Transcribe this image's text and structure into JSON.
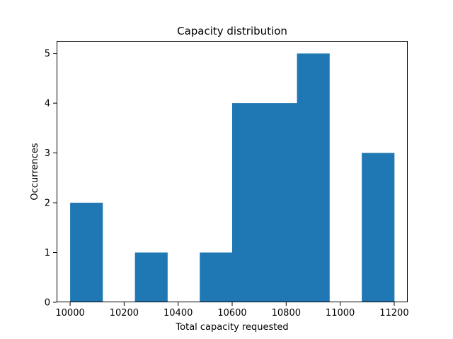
{
  "chart_data": {
    "type": "bar",
    "subtype": "histogram",
    "title": "Capacity distribution",
    "xlabel": "Total capacity requested",
    "ylabel": "Occurrences",
    "xlim": [
      9950,
      11250
    ],
    "ylim": [
      0,
      5.25
    ],
    "bins": [
      {
        "start": 10000,
        "end": 10120,
        "count": 2
      },
      {
        "start": 10120,
        "end": 10240,
        "count": 0
      },
      {
        "start": 10240,
        "end": 10360,
        "count": 1
      },
      {
        "start": 10360,
        "end": 10480,
        "count": 0
      },
      {
        "start": 10480,
        "end": 10600,
        "count": 1
      },
      {
        "start": 10600,
        "end": 10720,
        "count": 4
      },
      {
        "start": 10720,
        "end": 10840,
        "count": 4
      },
      {
        "start": 10840,
        "end": 10960,
        "count": 5
      },
      {
        "start": 10960,
        "end": 11080,
        "count": 0
      },
      {
        "start": 11080,
        "end": 11200,
        "count": 3
      }
    ],
    "xticks": [
      10000,
      10200,
      10400,
      10600,
      10800,
      11000,
      11200
    ],
    "yticks": [
      0,
      1,
      2,
      3,
      4,
      5
    ],
    "bar_color": "#1f77b4",
    "grid": false,
    "legend": "none"
  }
}
